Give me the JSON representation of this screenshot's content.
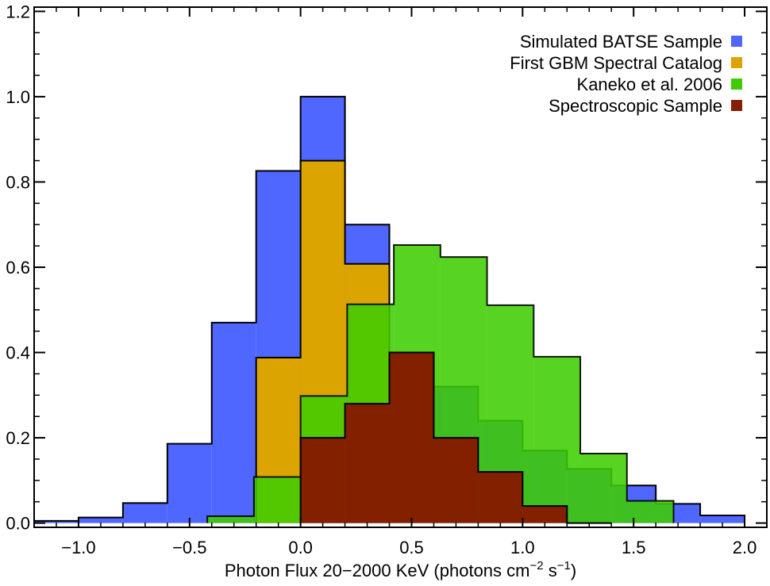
{
  "chart_data": {
    "type": "histogram",
    "xlabel": "Photon Flux 20−2000 KeV (photons cm",
    "xlabel_sup1": "−2",
    "xlabel_mid": " s",
    "xlabel_sup2": "−1",
    "xlabel_end": ")",
    "ylabel": "",
    "xlim": [
      -1.2,
      2.1
    ],
    "ylim": [
      -0.01,
      1.21
    ],
    "xticks": [
      -1.0,
      -0.5,
      0.0,
      0.5,
      1.0,
      1.5,
      2.0
    ],
    "xtick_labels": [
      "−1.0",
      "−0.5",
      "0.0",
      "0.5",
      "1.0",
      "1.5",
      "2.0"
    ],
    "yticks": [
      0.0,
      0.2,
      0.4,
      0.6,
      0.8,
      1.0,
      1.2
    ],
    "ytick_labels": [
      "0.0",
      "0.2",
      "0.4",
      "0.6",
      "0.8",
      "1.0",
      "1.2"
    ],
    "legend_position": "top-right",
    "series": [
      {
        "name": "Simulated BATSE Sample",
        "color": "#4f66ff",
        "opacity": 1.0,
        "edges": [
          -1.2,
          -1.0,
          -0.8,
          -0.6,
          -0.4,
          -0.2,
          0.0,
          0.2,
          0.4,
          0.6,
          0.8,
          1.0,
          1.2,
          1.4,
          1.6,
          1.8,
          2.0
        ],
        "values": [
          0.005,
          0.013,
          0.047,
          0.186,
          0.47,
          0.826,
          1.0,
          0.7,
          0.4,
          0.32,
          0.24,
          0.17,
          0.127,
          0.088,
          0.045,
          0.018
        ]
      },
      {
        "name": "First GBM Spectral Catalog",
        "color": "#dca400",
        "opacity": 1.0,
        "edges": [
          -0.2,
          0.0,
          0.2,
          0.4
        ],
        "values": [
          0.388,
          0.85,
          0.608
        ]
      },
      {
        "name": "Kaneko et al. 2006",
        "color": "#3ecc00",
        "opacity": 0.87,
        "edges": [
          -0.42,
          -0.21,
          0.0,
          0.21,
          0.42,
          0.63,
          0.84,
          1.05,
          1.26,
          1.47,
          1.68
        ],
        "values": [
          0.016,
          0.108,
          0.298,
          0.513,
          0.652,
          0.624,
          0.511,
          0.39,
          0.163,
          0.052
        ]
      },
      {
        "name": "Spectroscopic Sample",
        "color": "#822000",
        "opacity": 1.0,
        "edges": [
          0.0,
          0.2,
          0.4,
          0.6,
          0.8,
          1.0,
          1.2,
          1.4
        ],
        "values": [
          0.2,
          0.28,
          0.4,
          0.2,
          0.12,
          0.04,
          0.0
        ]
      }
    ]
  }
}
